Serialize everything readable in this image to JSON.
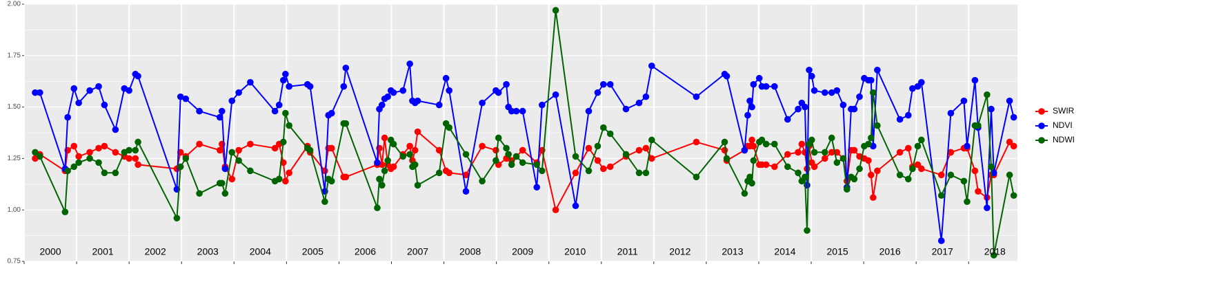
{
  "chart_data": {
    "type": "line",
    "x": [
      2000.21,
      2000.3,
      2000.78,
      2000.83,
      2000.95,
      2001.04,
      2001.25,
      2001.42,
      2001.53,
      2001.74,
      2001.91,
      2002.0,
      2002.12,
      2002.17,
      2002.91,
      2002.98,
      2003.08,
      2003.34,
      2003.73,
      2003.77,
      2003.83,
      2003.96,
      2004.09,
      2004.31,
      2004.78,
      2004.86,
      2004.94,
      2004.98,
      2005.05,
      2005.4,
      2005.45,
      2005.73,
      2005.8,
      2005.86,
      2006.09,
      2006.13,
      2006.73,
      2006.77,
      2006.82,
      2006.87,
      2006.93,
      2006.99,
      2007.04,
      2007.22,
      2007.35,
      2007.4,
      2007.45,
      2007.5,
      2007.91,
      2008.04,
      2008.1,
      2008.42,
      2008.73,
      2008.99,
      2009.04,
      2009.19,
      2009.23,
      2009.29,
      2009.38,
      2009.5,
      2009.77,
      2009.87,
      2010.13,
      2010.51,
      2010.76,
      2010.93,
      2011.04,
      2011.17,
      2011.47,
      2011.72,
      2011.85,
      2011.96,
      2012.81,
      2013.35,
      2013.39,
      2013.73,
      2013.79,
      2013.83,
      2013.87,
      2013.9,
      2014.01,
      2014.06,
      2014.14,
      2014.3,
      2014.55,
      2014.75,
      2014.82,
      2014.88,
      2014.92,
      2014.96,
      2015.01,
      2015.06,
      2015.26,
      2015.39,
      2015.49,
      2015.61,
      2015.68,
      2015.76,
      2015.82,
      2015.92,
      2016.01,
      2016.09,
      2016.14,
      2016.18,
      2016.26,
      2016.69,
      2016.85,
      2016.93,
      2017.03,
      2017.1,
      2017.48,
      2017.66,
      2017.91,
      2017.97,
      2018.12,
      2018.18,
      2018.35,
      2018.43,
      2018.48,
      2018.78,
      2018.86
    ],
    "series": [
      {
        "name": "SWIR",
        "color": "#ff0000",
        "values": [
          1.25,
          1.27,
          1.19,
          1.29,
          1.31,
          1.26,
          1.28,
          1.3,
          1.31,
          1.28,
          1.26,
          1.25,
          1.25,
          1.22,
          1.2,
          1.28,
          1.26,
          1.32,
          1.29,
          1.32,
          1.21,
          1.15,
          1.29,
          1.32,
          1.3,
          1.32,
          1.23,
          1.14,
          1.18,
          1.31,
          1.28,
          1.19,
          1.3,
          1.3,
          1.16,
          1.16,
          1.22,
          1.3,
          1.22,
          1.35,
          1.22,
          1.2,
          1.21,
          1.27,
          1.31,
          1.24,
          1.29,
          1.38,
          1.29,
          1.19,
          1.18,
          1.17,
          1.31,
          1.29,
          1.22,
          1.25,
          1.27,
          1.24,
          1.26,
          1.29,
          1.23,
          1.29,
          1.0,
          1.18,
          1.3,
          1.24,
          1.2,
          1.21,
          1.26,
          1.29,
          1.3,
          1.25,
          1.33,
          1.29,
          1.24,
          1.29,
          1.31,
          1.31,
          1.34,
          1.31,
          1.22,
          1.22,
          1.22,
          1.21,
          1.27,
          1.28,
          1.32,
          1.28,
          1.2,
          1.31,
          1.23,
          1.21,
          1.25,
          1.28,
          1.28,
          1.25,
          1.14,
          1.29,
          1.29,
          1.26,
          1.25,
          1.24,
          1.17,
          1.06,
          1.19,
          1.28,
          1.3,
          1.21,
          1.22,
          1.2,
          1.17,
          1.28,
          1.3,
          1.3,
          1.19,
          1.09,
          1.06,
          1.17,
          1.17,
          1.33,
          1.31
        ]
      },
      {
        "name": "NDVI",
        "color": "#0000ff",
        "values": [
          1.57,
          1.57,
          1.2,
          1.45,
          1.59,
          1.52,
          1.58,
          1.6,
          1.51,
          1.39,
          1.59,
          1.58,
          1.66,
          1.65,
          1.1,
          1.55,
          1.54,
          1.48,
          1.45,
          1.48,
          1.2,
          1.53,
          1.57,
          1.62,
          1.48,
          1.51,
          1.63,
          1.66,
          1.6,
          1.61,
          1.6,
          1.09,
          1.46,
          1.47,
          1.6,
          1.69,
          1.23,
          1.49,
          1.51,
          1.54,
          1.55,
          1.58,
          1.57,
          1.58,
          1.71,
          1.53,
          1.52,
          1.53,
          1.51,
          1.64,
          1.58,
          1.09,
          1.52,
          1.58,
          1.57,
          1.61,
          1.5,
          1.48,
          1.48,
          1.48,
          1.11,
          1.51,
          1.56,
          1.02,
          1.48,
          1.57,
          1.61,
          1.61,
          1.49,
          1.52,
          1.55,
          1.7,
          1.55,
          1.66,
          1.65,
          1.29,
          1.46,
          1.53,
          1.5,
          1.61,
          1.64,
          1.6,
          1.6,
          1.6,
          1.44,
          1.49,
          1.52,
          1.5,
          1.12,
          1.68,
          1.65,
          1.58,
          1.57,
          1.57,
          1.58,
          1.51,
          1.11,
          1.49,
          1.49,
          1.55,
          1.64,
          1.63,
          1.63,
          1.31,
          1.68,
          1.44,
          1.46,
          1.59,
          1.6,
          1.62,
          0.85,
          1.47,
          1.53,
          1.31,
          1.63,
          1.4,
          1.01,
          1.49,
          1.18,
          1.53,
          1.45
        ]
      },
      {
        "name": "NDWI",
        "color": "#006400",
        "values": [
          1.28,
          1.26,
          0.99,
          1.19,
          1.21,
          1.23,
          1.25,
          1.23,
          1.18,
          1.18,
          1.28,
          1.29,
          1.29,
          1.33,
          0.96,
          1.21,
          1.25,
          1.08,
          1.13,
          1.13,
          1.08,
          1.28,
          1.24,
          1.19,
          1.14,
          1.15,
          1.33,
          1.47,
          1.41,
          1.3,
          1.29,
          1.04,
          1.15,
          1.14,
          1.42,
          1.42,
          1.01,
          1.15,
          1.12,
          1.19,
          1.24,
          1.34,
          1.32,
          1.26,
          1.27,
          1.21,
          1.22,
          1.12,
          1.18,
          1.42,
          1.4,
          1.27,
          1.14,
          1.24,
          1.35,
          1.3,
          1.27,
          1.22,
          1.26,
          1.23,
          1.22,
          1.19,
          1.97,
          1.26,
          1.19,
          1.31,
          1.4,
          1.37,
          1.27,
          1.18,
          1.18,
          1.34,
          1.16,
          1.33,
          1.25,
          1.08,
          1.14,
          1.16,
          1.13,
          1.24,
          1.33,
          1.34,
          1.32,
          1.32,
          1.21,
          1.18,
          1.14,
          1.16,
          0.9,
          1.32,
          1.34,
          1.28,
          1.28,
          1.35,
          1.23,
          1.25,
          1.1,
          1.16,
          1.15,
          1.2,
          1.31,
          1.32,
          1.35,
          1.57,
          1.41,
          1.17,
          1.15,
          1.2,
          1.31,
          1.34,
          1.07,
          1.17,
          1.14,
          1.04,
          1.41,
          1.41,
          1.56,
          1.21,
          0.78,
          1.17,
          1.07
        ]
      }
    ],
    "xlim": [
      2000.0,
      2018.93
    ],
    "xticks": [
      {
        "value": 2000,
        "label": "2000"
      },
      {
        "value": 2001,
        "label": "2001"
      },
      {
        "value": 2002,
        "label": "2002"
      },
      {
        "value": 2003,
        "label": "2003"
      },
      {
        "value": 2004,
        "label": "2004"
      },
      {
        "value": 2005,
        "label": "2005"
      },
      {
        "value": 2006,
        "label": "2006"
      },
      {
        "value": 2007,
        "label": "2007"
      },
      {
        "value": 2008,
        "label": "2008"
      },
      {
        "value": 2009,
        "label": "2009"
      },
      {
        "value": 2010,
        "label": "2010"
      },
      {
        "value": 2011,
        "label": "2011"
      },
      {
        "value": 2012,
        "label": "2012"
      },
      {
        "value": 2013,
        "label": "2013"
      },
      {
        "value": 2014,
        "label": "2014"
      },
      {
        "value": 2015,
        "label": "2015"
      },
      {
        "value": 2016,
        "label": "2016"
      },
      {
        "value": 2017,
        "label": "2017"
      },
      {
        "value": 2018,
        "label": "2018"
      }
    ],
    "ylim": [
      0.75,
      2.0
    ],
    "yticks": [
      0.75,
      {
        "value": 1.0,
        "label": "1.00"
      },
      1.25,
      {
        "value": 1.5,
        "label": "1.50"
      },
      1.75,
      {
        "value": 2.0,
        "label": "2.00"
      }
    ],
    "grid": true,
    "legend": "right"
  }
}
